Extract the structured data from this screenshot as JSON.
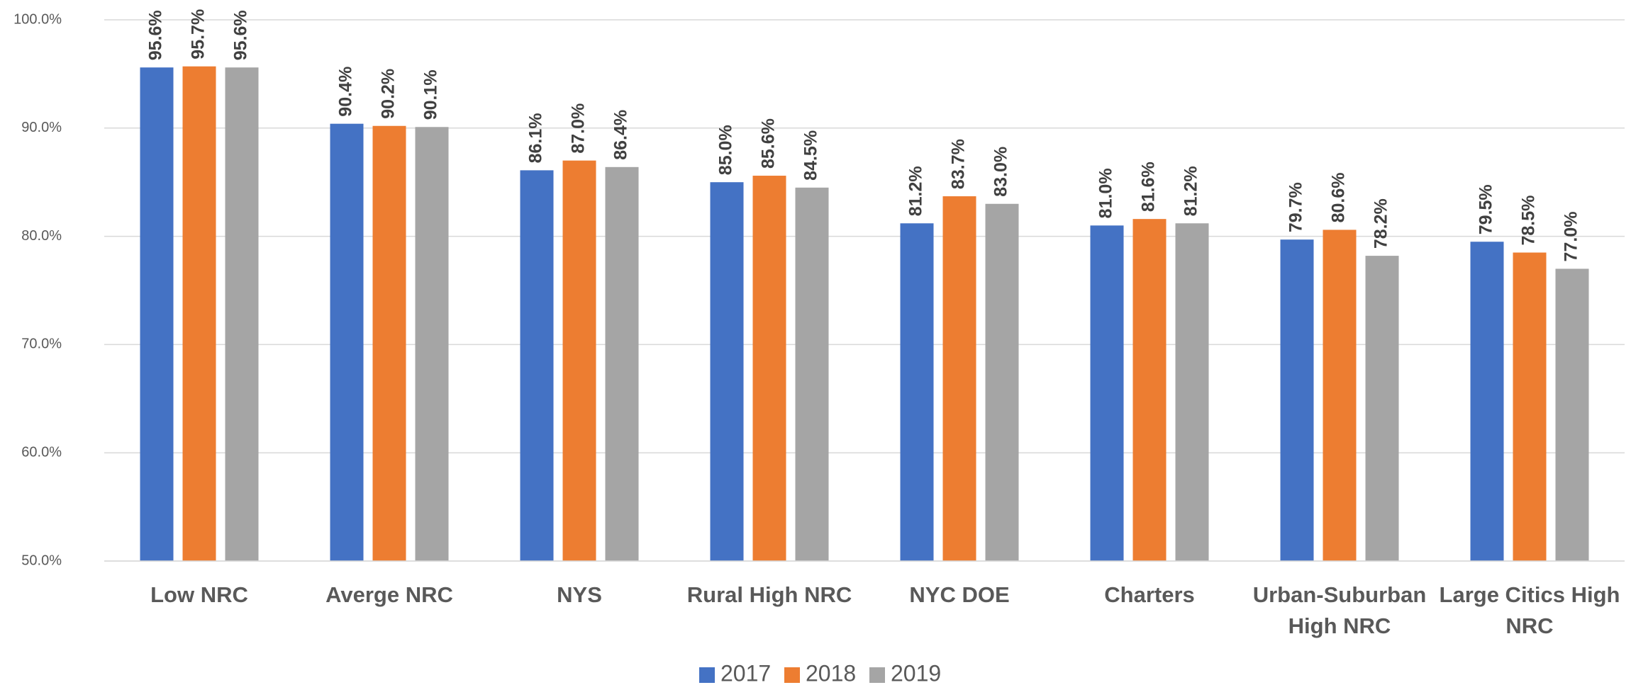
{
  "chart_data": {
    "type": "bar",
    "categories": [
      "Low NRC",
      "Averge NRC",
      "NYS",
      "Rural High NRC",
      "NYC DOE",
      "Charters",
      "Urban-Suburban High NRC",
      "Large Citics High NRC"
    ],
    "series": [
      {
        "name": "2017",
        "color": "#4472c4",
        "values": [
          95.6,
          90.4,
          86.1,
          85.0,
          81.2,
          81.0,
          79.7,
          79.5
        ],
        "value_labels": [
          "95.6%",
          "90.4%",
          "86.1%",
          "85.0%",
          "81.2%",
          "81.0%",
          "79.7%",
          "79.5%"
        ]
      },
      {
        "name": "2018",
        "color": "#ed7d31",
        "values": [
          95.7,
          90.2,
          87.0,
          85.6,
          83.7,
          81.6,
          80.6,
          78.5
        ],
        "value_labels": [
          "95.7%",
          "90.2%",
          "87.0%",
          "85.6%",
          "83.7%",
          "81.6%",
          "80.6%",
          "78.5%"
        ]
      },
      {
        "name": "2019",
        "color": "#a5a5a5",
        "values": [
          95.6,
          90.1,
          86.4,
          84.5,
          83.0,
          81.2,
          78.2,
          77.0
        ],
        "value_labels": [
          "95.6%",
          "90.1%",
          "86.4%",
          "84.5%",
          "83.0%",
          "81.2%",
          "78.2%",
          "77.0%"
        ]
      }
    ],
    "ylim": [
      50,
      100
    ],
    "yticks": [
      {
        "value": 50,
        "label": "50.0%"
      },
      {
        "value": 60,
        "label": "60.0%"
      },
      {
        "value": 70,
        "label": "70.0%"
      },
      {
        "value": 80,
        "label": "80.0%"
      },
      {
        "value": 90,
        "label": "90.0%"
      },
      {
        "value": 100,
        "label": "100.0%"
      }
    ],
    "grid": true,
    "legend": "bottom"
  }
}
